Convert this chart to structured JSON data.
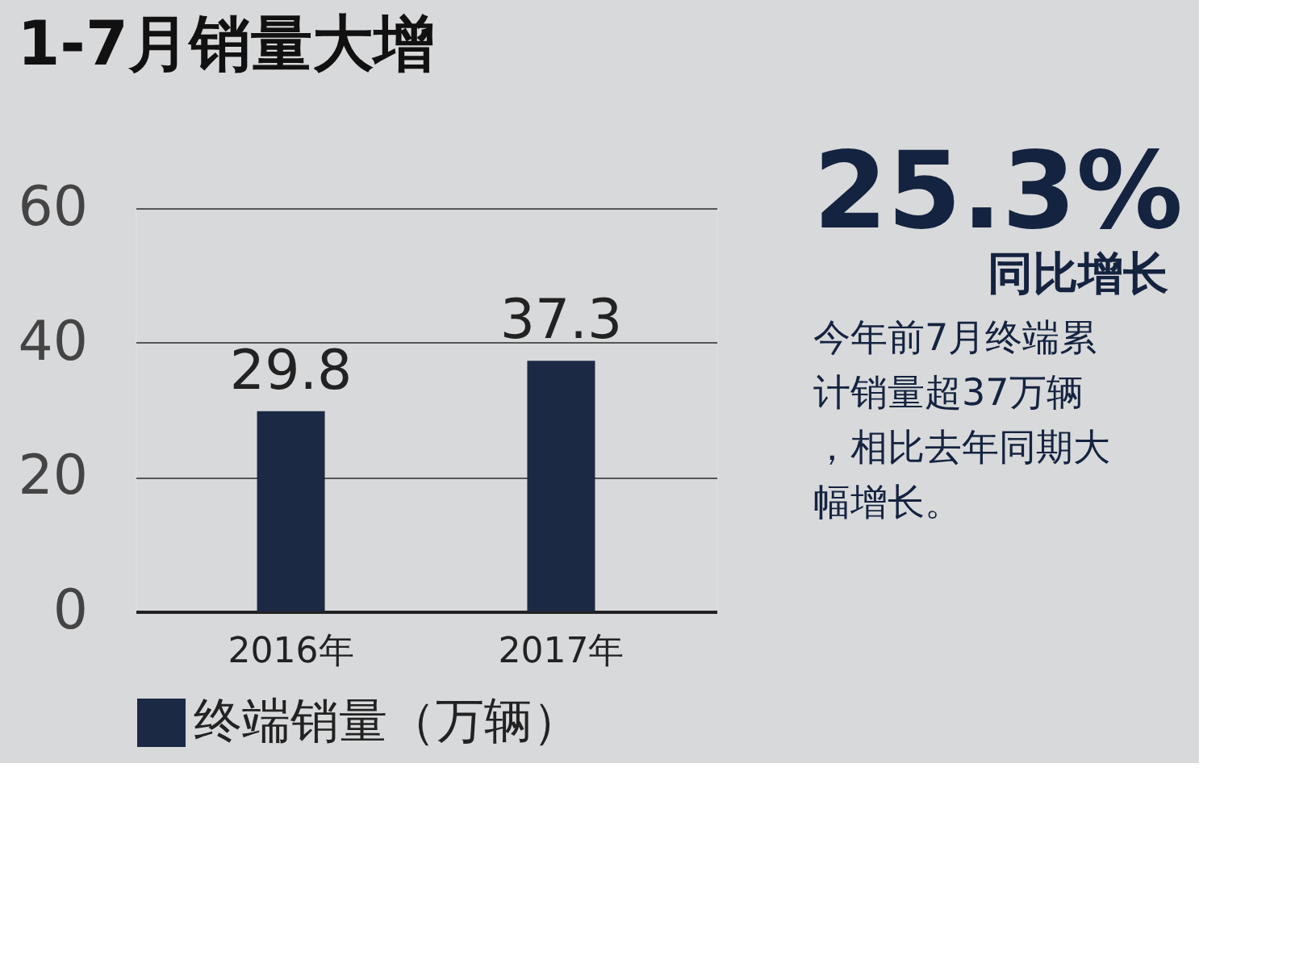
{
  "chart_data": {
    "type": "bar",
    "title": "1-7月销量大增",
    "categories": [
      "2016年",
      "2017年"
    ],
    "series": [
      {
        "name": "终端销量（万辆）",
        "color": "#1b2945",
        "values": [
          29.8,
          37.3
        ]
      }
    ],
    "ylim": [
      0,
      60
    ],
    "yticks": [
      0,
      20,
      40,
      60
    ],
    "grid": "y",
    "legend": "bottom",
    "data_labels": true,
    "annotations": [
      "25.3%",
      "同比增长",
      "今年前7月终端累计销量超37万辆，相比去年同期大幅增长。"
    ]
  }
}
